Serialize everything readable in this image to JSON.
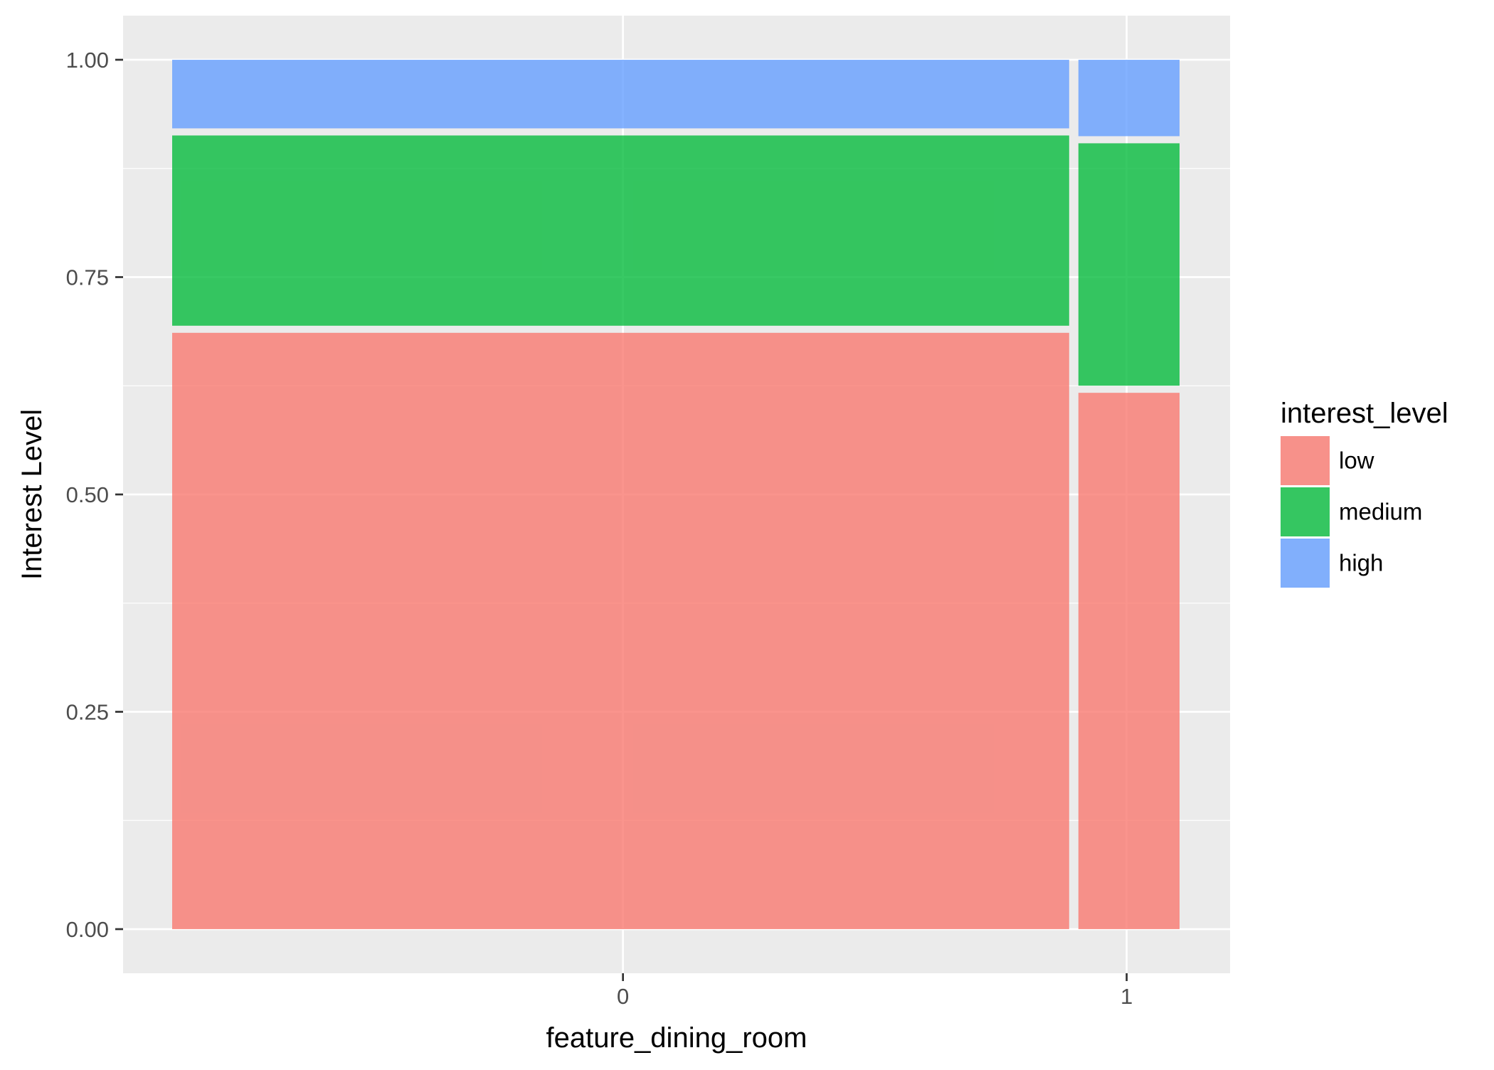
{
  "chart_data": {
    "type": "bar",
    "subtype": "mosaic (stacked proportion, variable width)",
    "xlabel": "feature_dining_room",
    "ylabel": "Interest Level",
    "categories": [
      "0",
      "1"
    ],
    "category_widths": [
      0.895,
      0.105
    ],
    "ylim": [
      0,
      1
    ],
    "y_ticks": [
      "0.00",
      "0.25",
      "0.50",
      "0.75",
      "1.00"
    ],
    "grid": true,
    "legend": {
      "title": "interest_level",
      "position": "right",
      "entries": [
        "low",
        "medium",
        "high"
      ]
    },
    "series": [
      {
        "name": "low",
        "color": "#F8766D",
        "values": [
          0.69,
          0.621
        ]
      },
      {
        "name": "medium",
        "color": "#00BA38",
        "values": [
          0.227,
          0.287
        ]
      },
      {
        "name": "high",
        "color": "#619CFF",
        "values": [
          0.083,
          0.092
        ]
      }
    ]
  }
}
